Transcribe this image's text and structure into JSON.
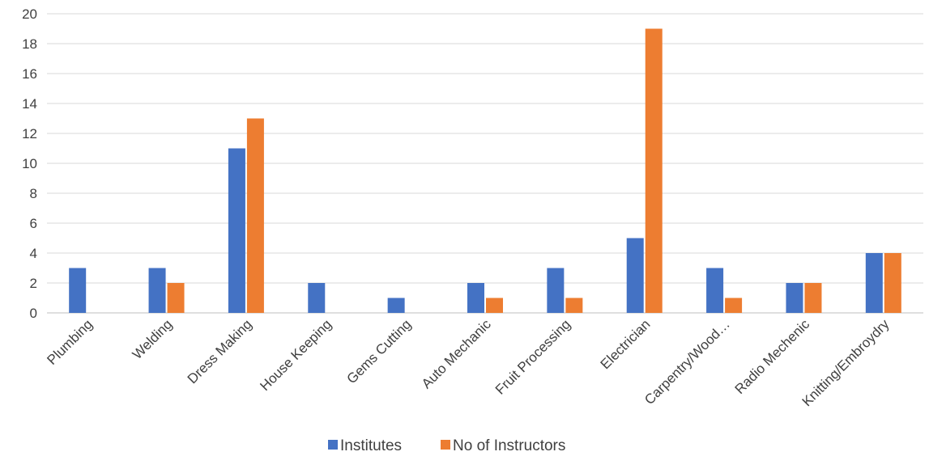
{
  "chart_data": {
    "type": "bar",
    "categories": [
      "Plumbing",
      "Welding",
      "Dress Making",
      "House Keeping",
      "Gems Cutting",
      "Auto Mechanic",
      "Fruit Processing",
      "Electrician",
      "Carpentry/Wood…",
      "Radio Mechenic",
      "Knitting/Embroydry"
    ],
    "series": [
      {
        "name": "Institutes",
        "values": [
          3,
          3,
          11,
          2,
          1,
          2,
          3,
          5,
          3,
          2,
          4
        ],
        "color": "#4472C4"
      },
      {
        "name": "No of Instructors",
        "values": [
          0,
          2,
          13,
          0,
          0,
          1,
          1,
          19,
          1,
          2,
          4
        ],
        "color": "#ED7D31"
      }
    ],
    "ylim": [
      0,
      20
    ],
    "yticks": [
      "0",
      "2",
      "4",
      "6",
      "8",
      "10",
      "12",
      "14",
      "16",
      "18",
      "20"
    ],
    "grid": true,
    "legend": "bottom",
    "title": "",
    "xlabel": "",
    "ylabel": ""
  }
}
